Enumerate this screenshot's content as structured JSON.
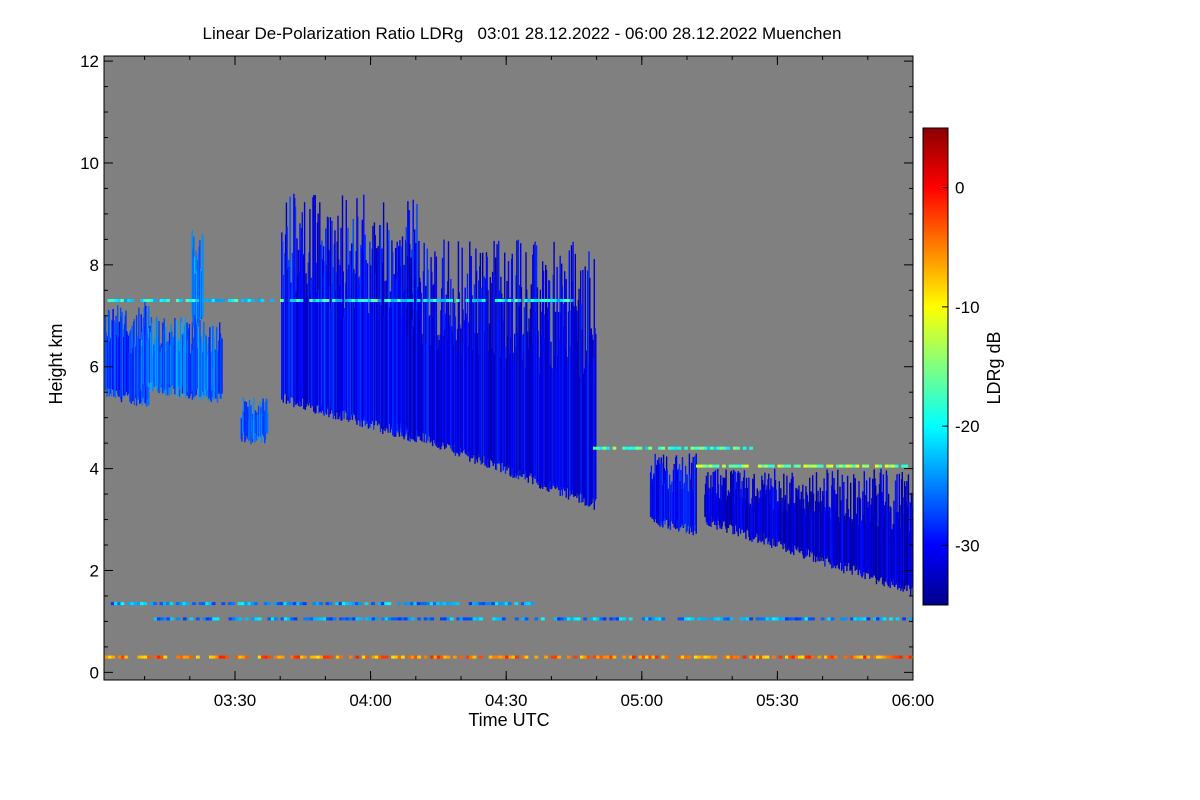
{
  "chart_data": {
    "type": "heatmap",
    "title": "Linear De-Polarization Ratio LDRg   03:01 28.12.2022 - 06:00 28.12.2022 Muenchen",
    "xlabel": "Time UTC",
    "ylabel": "Height km",
    "xlim": [
      3.017,
      6.0
    ],
    "ylim": [
      -0.15,
      12.1
    ],
    "x_ticks": [
      {
        "value": 3.5,
        "label": "03:30"
      },
      {
        "value": 4.0,
        "label": "04:00"
      },
      {
        "value": 4.5,
        "label": "04:30"
      },
      {
        "value": 5.0,
        "label": "05:00"
      },
      {
        "value": 5.5,
        "label": "05:30"
      },
      {
        "value": 6.0,
        "label": "06:00"
      }
    ],
    "y_ticks": [
      {
        "value": 0,
        "label": "0"
      },
      {
        "value": 2,
        "label": "2"
      },
      {
        "value": 4,
        "label": "4"
      },
      {
        "value": 6,
        "label": "6"
      },
      {
        "value": 8,
        "label": "8"
      },
      {
        "value": 10,
        "label": "10"
      },
      {
        "value": 12,
        "label": "12"
      }
    ],
    "background_color": "#808080",
    "colorbar": {
      "label": "LDRg dB",
      "range": [
        -35,
        5
      ],
      "ticks": [
        {
          "value": 0,
          "label": "0"
        },
        {
          "value": -10,
          "label": "-10"
        },
        {
          "value": -20,
          "label": "-20"
        },
        {
          "value": -30,
          "label": "-30"
        }
      ],
      "colors": [
        "#00008b",
        "#0000ff",
        "#0080ff",
        "#00ffff",
        "#80ff80",
        "#ffff00",
        "#ff8000",
        "#ff0000",
        "#8b0000"
      ]
    },
    "features": [
      {
        "name": "early cloud streaks",
        "t0": 3.02,
        "t1": 3.18,
        "base_start": 5.5,
        "base_end": 5.3,
        "top": 7.3,
        "ldr": -28
      },
      {
        "name": "small cloud",
        "t0": 3.15,
        "t1": 3.45,
        "base_start": 5.6,
        "base_end": 5.4,
        "top": 7.0,
        "ldr": -26
      },
      {
        "name": "fall streak",
        "t0": 3.34,
        "t1": 3.38,
        "base_start": 6.9,
        "base_end": 6.9,
        "top": 8.7,
        "ldr": -25
      },
      {
        "name": "low patch",
        "t0": 3.52,
        "t1": 3.62,
        "base_start": 4.6,
        "base_end": 4.6,
        "top": 5.4,
        "ldr": -27
      },
      {
        "name": "main cirrus",
        "t0": 3.67,
        "t1": 4.17,
        "base_start": 5.4,
        "base_end": 4.6,
        "top": 9.4,
        "ldr": -30
      },
      {
        "name": "cirrus fall streaks",
        "t0": 4.1,
        "t1": 4.83,
        "base_start": 4.8,
        "base_end": 3.3,
        "top": 8.5,
        "ldr": -31
      },
      {
        "name": "mid cloud",
        "t0": 5.03,
        "t1": 5.2,
        "base_start": 3.0,
        "base_end": 2.8,
        "top": 4.3,
        "ldr": -30
      },
      {
        "name": "lower cloud",
        "t0": 5.23,
        "t1": 6.0,
        "base_start": 3.0,
        "base_end": 1.6,
        "top": 4.0,
        "ldr": -32
      }
    ],
    "horizontal_lines": [
      {
        "height": 7.3,
        "t0": 3.03,
        "t1": 4.75,
        "ldr": -20
      },
      {
        "height": 4.4,
        "t0": 4.82,
        "t1": 5.4,
        "ldr": -18
      },
      {
        "height": 4.05,
        "t0": 5.2,
        "t1": 5.98,
        "ldr": -15
      },
      {
        "height": 1.35,
        "t0": 3.03,
        "t1": 4.6,
        "ldr": -24
      },
      {
        "height": 1.05,
        "t0": 3.2,
        "t1": 6.0,
        "ldr": -24
      },
      {
        "height": 0.3,
        "t0": 3.02,
        "t1": 6.0,
        "ldr": -5
      }
    ]
  }
}
